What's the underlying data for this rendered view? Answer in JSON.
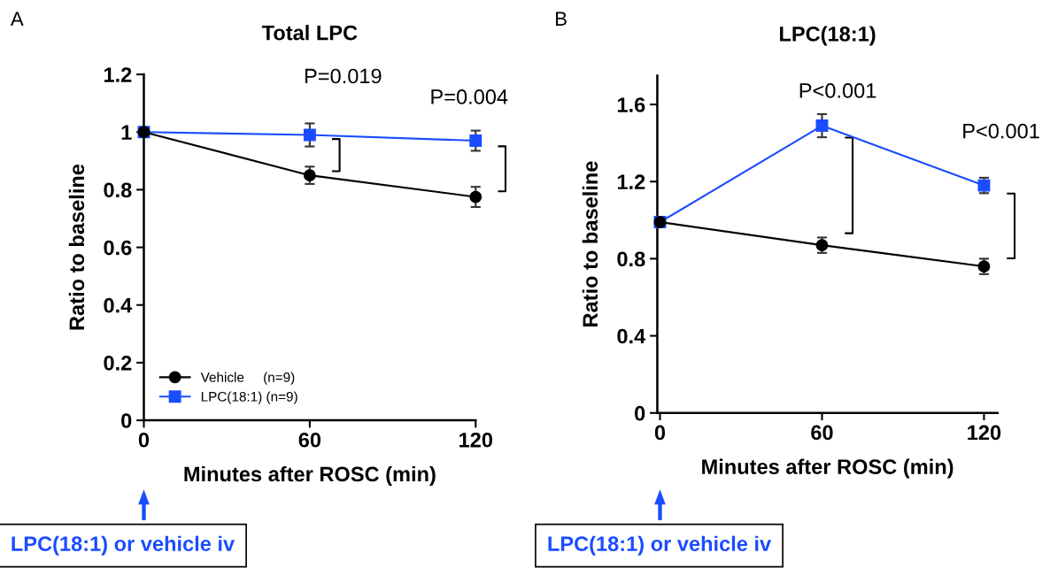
{
  "chart_data": [
    {
      "type": "line",
      "title": "Total LPC",
      "xlabel": "Minutes after ROSC (min)",
      "ylabel": "Ratio to baseline",
      "x": [
        0,
        60,
        120
      ],
      "xlim": [
        0,
        120
      ],
      "xticks": [
        0,
        60,
        120
      ],
      "ylim": [
        0,
        1.2
      ],
      "yticks": [
        0,
        0.2,
        0.4,
        0.6,
        0.8,
        1,
        1.2
      ],
      "series": [
        {
          "name": "Vehicle     (n=9)",
          "color": "#000000",
          "marker": "circle",
          "values": [
            1,
            0.85,
            0.775
          ],
          "errors": [
            null,
            0.03,
            0.035
          ]
        },
        {
          "name": "LPC(18:1) (n=9)",
          "color": "#1a4cff",
          "marker": "square",
          "values": [
            1,
            0.99,
            0.97
          ],
          "errors": [
            null,
            0.04,
            0.035
          ]
        }
      ],
      "legend": "bottom left",
      "grid": false,
      "annotations": [
        "A",
        "LPC(18:1) or vehicle iv",
        "P=0.019",
        "P=0.004"
      ]
    },
    {
      "type": "line",
      "title": "LPC(18:1)",
      "xlabel": "Minutes after ROSC (min)",
      "ylabel": "Ratio to baseline",
      "x": [
        0,
        60,
        120
      ],
      "xlim": [
        -1,
        125
      ],
      "xticks": [
        0,
        60,
        120
      ],
      "ylim": [
        0,
        1.75
      ],
      "yticks": [
        0,
        0.4,
        0.8,
        1.2,
        1.6
      ],
      "series": [
        {
          "color": "#000000",
          "marker": "circle",
          "values": [
            0.99,
            0.87,
            0.76
          ],
          "errors": [
            null,
            0.04,
            0.04
          ]
        },
        {
          "color": "#1a4cff",
          "marker": "square",
          "values": [
            0.99,
            1.49,
            1.18
          ],
          "errors": [
            null,
            0.06,
            0.04
          ]
        }
      ],
      "legend": false,
      "grid": false,
      "annotations": [
        "B",
        "LPC(18:1) or vehicle iv",
        "P<0.001",
        "P<0.001"
      ]
    }
  ]
}
